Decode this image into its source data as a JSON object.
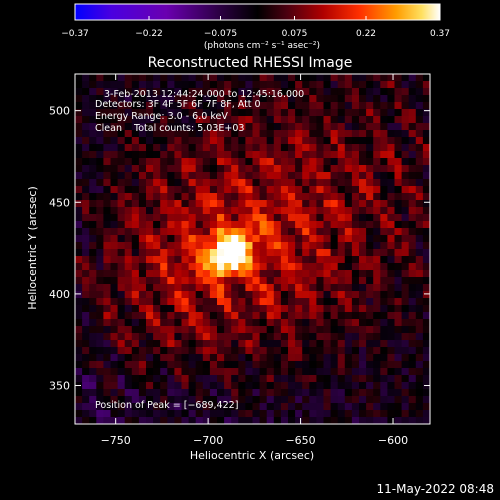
{
  "chart_data": {
    "type": "heatmap",
    "title": "Reconstructed RHESSI Image",
    "xlabel": "Heliocentric X (arcsec)",
    "ylabel": "Heliocentric Y (arcsec)",
    "xlim": [
      -772,
      -580
    ],
    "ylim": [
      329,
      520
    ],
    "x_ticks": [
      -750,
      -700,
      -650,
      -600
    ],
    "x_tick_labels": [
      "−750",
      "−700",
      "−650",
      "−600"
    ],
    "y_ticks": [
      350,
      400,
      450,
      500
    ],
    "y_tick_labels": [
      "350",
      "400",
      "450",
      "500"
    ],
    "colorbar": {
      "range": [
        -0.37,
        0.37
      ],
      "ticks": [
        -0.37,
        -0.22,
        -0.075,
        0.075,
        0.22,
        0.37
      ],
      "tick_labels": [
        "−0.37",
        "−0.22",
        "−0.075",
        "0.075",
        "0.22",
        "0.37"
      ],
      "unit_label": "(photons cm⁻² s⁻¹ asec⁻²)",
      "colors": [
        "#0000ff",
        "#6a00b4",
        "#3a0060",
        "#000000",
        "#5a0020",
        "#b00000",
        "#ff3000",
        "#ff9000",
        "#ffd000",
        "#ffffff"
      ]
    },
    "source": {
      "peak_x": -689,
      "peak_y": 422,
      "peak_value": 0.37,
      "elongation_angle_deg": 30
    },
    "annotations": [
      "3-Feb-2013 12:44:24.000 to 12:45:16.000",
      "Detectors: 3F 4F 5F 6F 7F 8F, Att 0",
      "Energy Range: 3.0 - 6.0 keV",
      "Clean    Total counts: 5.03E+03"
    ],
    "peak_label": "Position of Peak = [−689,422]",
    "timestamp": "11-May-2022 08:48"
  }
}
